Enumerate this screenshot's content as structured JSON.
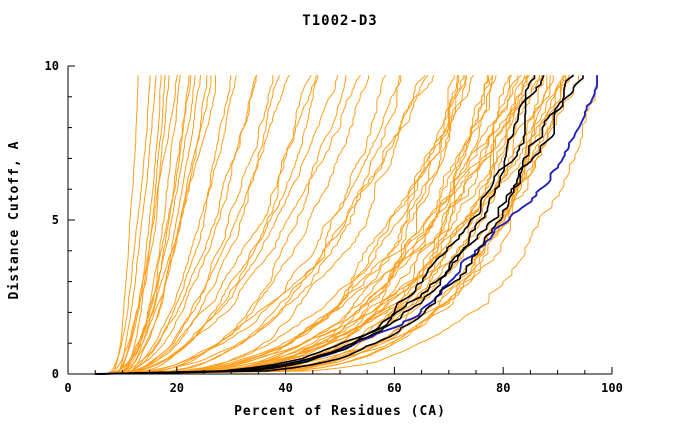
{
  "chart_data": {
    "type": "line",
    "title": "T1002-D3",
    "xlabel": "Percent of Residues (CA)",
    "ylabel": "Distance Cutoff, A",
    "xlim": [
      0,
      100
    ],
    "ylim": [
      0,
      10
    ],
    "xticks": [
      0,
      20,
      40,
      60,
      80,
      100
    ],
    "yticks": [
      0,
      5,
      10
    ],
    "xminor_step": 5,
    "yminor_step": 1,
    "grid": "off",
    "legend": "none",
    "curve_top": 9.7,
    "curve_model": "x(y) = x0 + (x1-x0)*(y/10)^p for y in [0, curve_top]; each curve = [x0, x1, p, seed]",
    "axis_color": "#000000",
    "series_groups": [
      {
        "name": "other-predictions",
        "color": "#ff9e1b",
        "width": 1,
        "curves": [
          [
            8,
            13,
            0.5,
            1
          ],
          [
            7,
            15,
            0.45,
            2
          ],
          [
            9,
            16,
            0.6,
            3
          ],
          [
            8,
            17,
            0.4,
            4
          ],
          [
            10,
            18,
            0.55,
            5
          ],
          [
            7,
            19,
            0.45,
            6
          ],
          [
            9,
            20,
            0.65,
            7
          ],
          [
            8,
            21,
            0.38,
            8
          ],
          [
            10,
            22,
            0.52,
            9
          ],
          [
            7,
            23,
            0.44,
            10
          ],
          [
            9,
            24,
            0.58,
            11
          ],
          [
            8,
            25,
            0.42,
            12
          ],
          [
            10,
            26,
            0.5,
            13
          ],
          [
            7,
            27,
            0.47,
            14
          ],
          [
            9,
            28,
            0.62,
            15
          ],
          [
            8,
            30,
            0.4,
            16
          ],
          [
            10,
            32,
            0.55,
            17
          ],
          [
            7,
            34,
            0.45,
            18
          ],
          [
            9,
            36,
            0.5,
            19
          ],
          [
            8,
            38,
            0.43,
            20
          ],
          [
            8,
            40,
            0.42,
            21
          ],
          [
            9,
            42,
            0.5,
            22
          ],
          [
            7,
            44,
            0.38,
            23
          ],
          [
            10,
            46,
            0.46,
            24
          ],
          [
            8,
            48,
            0.52,
            25
          ],
          [
            9,
            50,
            0.36,
            26
          ],
          [
            7,
            52,
            0.44,
            27
          ],
          [
            10,
            54,
            0.4,
            28
          ],
          [
            8,
            56,
            0.48,
            29
          ],
          [
            9,
            58,
            0.34,
            30
          ],
          [
            7,
            60,
            0.42,
            31
          ],
          [
            10,
            62,
            0.38,
            32
          ],
          [
            8,
            64,
            0.45,
            33
          ],
          [
            9,
            66,
            0.32,
            34
          ],
          [
            7,
            68,
            0.4,
            35
          ],
          [
            8,
            70,
            0.3,
            36
          ],
          [
            9,
            71,
            0.26,
            37
          ],
          [
            7,
            72,
            0.34,
            38
          ],
          [
            10,
            73,
            0.24,
            39
          ],
          [
            8,
            74,
            0.3,
            40
          ],
          [
            9,
            75,
            0.22,
            41
          ],
          [
            7,
            76,
            0.32,
            42
          ],
          [
            10,
            77,
            0.26,
            43
          ],
          [
            8,
            78,
            0.28,
            44
          ],
          [
            9,
            79,
            0.22,
            45
          ],
          [
            7,
            80,
            0.3,
            46
          ],
          [
            10,
            81,
            0.24,
            47
          ],
          [
            8,
            82,
            0.28,
            48
          ],
          [
            9,
            83,
            0.21,
            49
          ],
          [
            7,
            84,
            0.26,
            50
          ],
          [
            10,
            85,
            0.23,
            51
          ],
          [
            8,
            86,
            0.28,
            52
          ],
          [
            9,
            87,
            0.2,
            53
          ],
          [
            7,
            88,
            0.25,
            54
          ],
          [
            10,
            89,
            0.22,
            55
          ],
          [
            8,
            90,
            0.27,
            56
          ],
          [
            9,
            91,
            0.2,
            57
          ],
          [
            7,
            92,
            0.24,
            58
          ],
          [
            10,
            93,
            0.21,
            59
          ],
          [
            8,
            94,
            0.26,
            60
          ],
          [
            9,
            95,
            0.19,
            61
          ],
          [
            7,
            96,
            0.23,
            62
          ],
          [
            8,
            85,
            0.35,
            63
          ],
          [
            9,
            88,
            0.33,
            64
          ],
          [
            7,
            90,
            0.36,
            65
          ],
          [
            10,
            92,
            0.31,
            66
          ],
          [
            8,
            83,
            0.38,
            67
          ],
          [
            9,
            86,
            0.3,
            68
          ],
          [
            7,
            89,
            0.34,
            69
          ],
          [
            10,
            91,
            0.29,
            70
          ]
        ]
      },
      {
        "name": "highlighted-model-blue",
        "color": "#2222bb",
        "width": 1.9,
        "curves": [
          [
            5,
            95,
            0.26,
            90
          ]
        ]
      },
      {
        "name": "reference-models-black",
        "color": "#000000",
        "width": 1.6,
        "curves": [
          [
            5,
            89,
            0.24,
            81
          ],
          [
            6,
            90,
            0.27,
            82
          ],
          [
            5,
            91,
            0.22,
            83
          ],
          [
            6,
            92,
            0.29,
            84
          ]
        ]
      }
    ]
  }
}
